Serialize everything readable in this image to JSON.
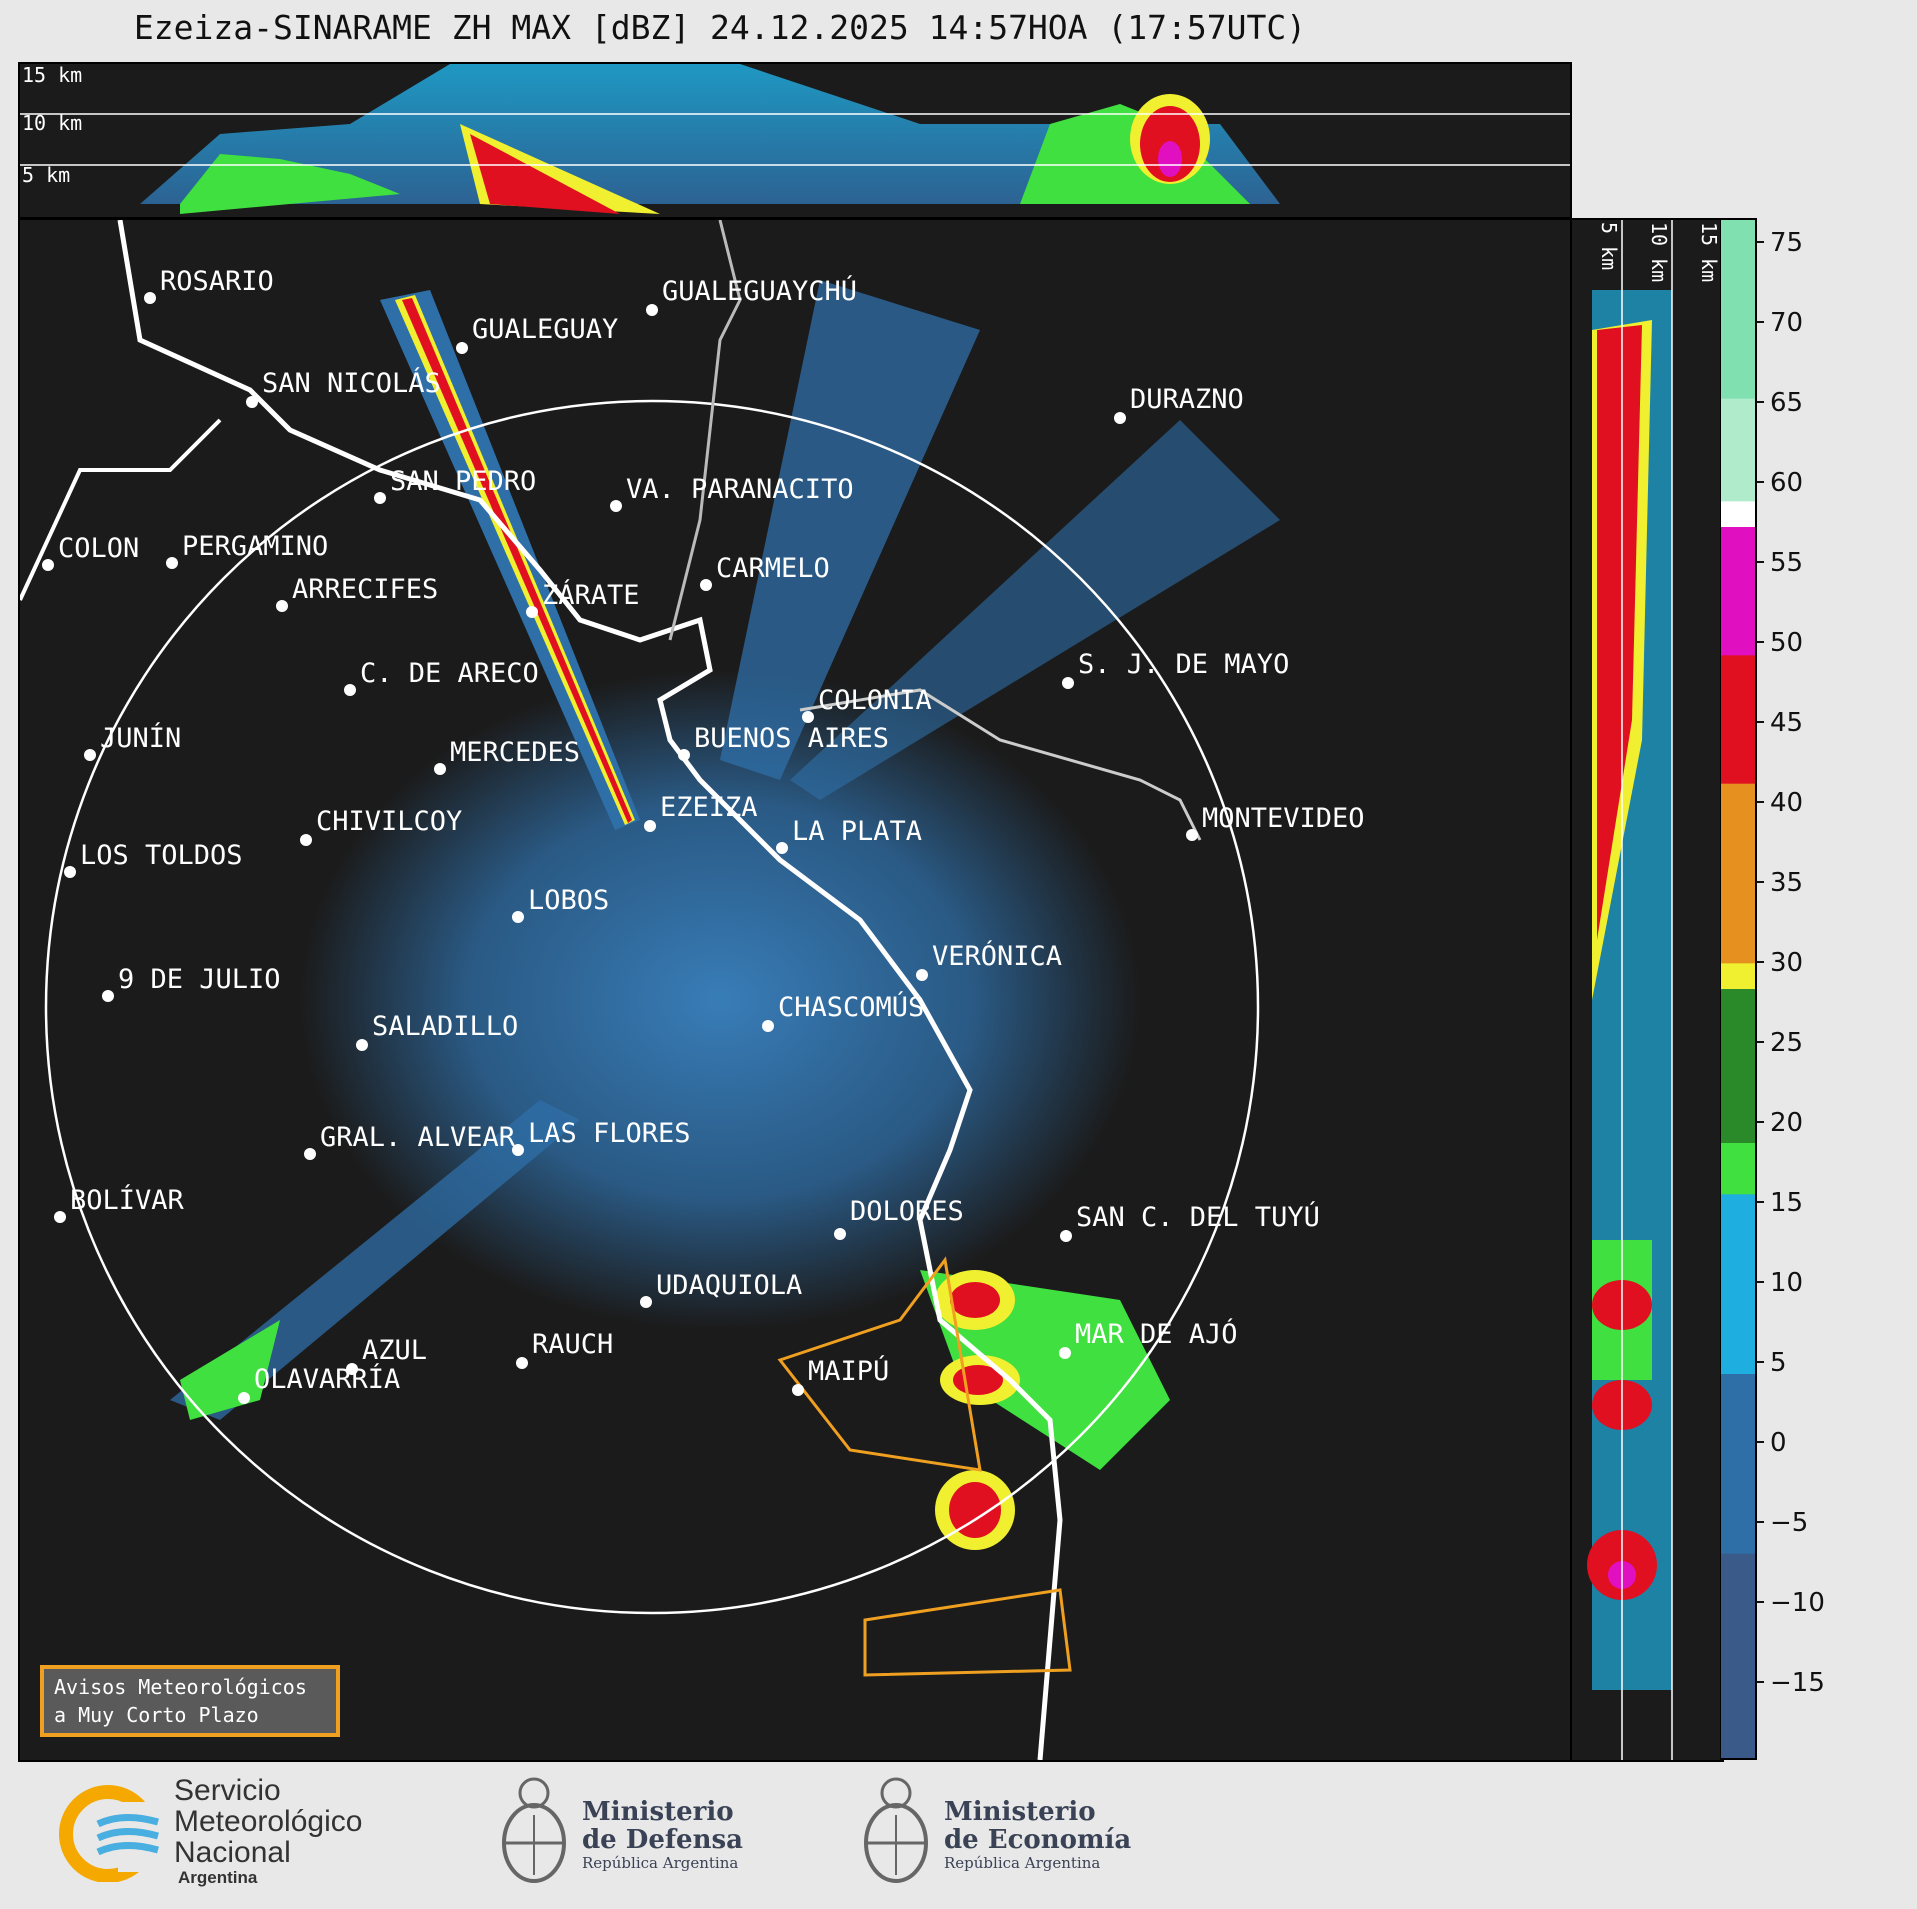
{
  "title": "Ezeiza-SINARAME ZH MAX [dBZ] 24.12.2025 14:57HOA (17:57UTC)",
  "height_panel": {
    "top_labels": [
      "15 km",
      "10 km",
      "5 km"
    ],
    "side_labels": [
      "5 km",
      "10 km",
      "15 km"
    ]
  },
  "colorbar": {
    "ticks": [
      "75",
      "70",
      "65",
      "60",
      "55",
      "50",
      "45",
      "40",
      "35",
      "30",
      "25",
      "20",
      "15",
      "10",
      "5",
      "0",
      "−5",
      "−10",
      "−15"
    ],
    "colors": {
      "min": "#3b3f6b",
      "low": "#2f6fa8",
      "mid": "#1faee0",
      "green": "#3fe03f",
      "yellow": "#f0f030",
      "orange": "#e69020",
      "red": "#e01020",
      "magenta": "#e010c0",
      "white": "#ffffff",
      "teal": "#80e0b0"
    }
  },
  "cities": [
    {
      "name": "ROSARIO"
    },
    {
      "name": "GUALEGUAYCHÚ"
    },
    {
      "name": "GUALEGUAY"
    },
    {
      "name": "SAN NICOLÁS"
    },
    {
      "name": "DURAZNO"
    },
    {
      "name": "SAN PEDRO"
    },
    {
      "name": "VA. PARANACITO"
    },
    {
      "name": "COLON"
    },
    {
      "name": "PERGAMINO"
    },
    {
      "name": "CARMELO"
    },
    {
      "name": "ARRECIFES"
    },
    {
      "name": "ZÁRATE"
    },
    {
      "name": "S. J. DE MAYO"
    },
    {
      "name": "C. DE ARECO"
    },
    {
      "name": "COLONIA"
    },
    {
      "name": "JUNÍN"
    },
    {
      "name": "BUENOS AIRES"
    },
    {
      "name": "MERCEDES"
    },
    {
      "name": "EZEIZA"
    },
    {
      "name": "MONTEVIDEO"
    },
    {
      "name": "CHIVILCOY"
    },
    {
      "name": "LA PLATA"
    },
    {
      "name": "LOS TOLDOS"
    },
    {
      "name": "LOBOS"
    },
    {
      "name": "VERÓNICA"
    },
    {
      "name": "9 DE JULIO"
    },
    {
      "name": "CHASCOMÚS"
    },
    {
      "name": "SALADILLO"
    },
    {
      "name": "GRAL. ALVEAR"
    },
    {
      "name": "LAS FLORES"
    },
    {
      "name": "BOLÍVAR"
    },
    {
      "name": "DOLORES"
    },
    {
      "name": "SAN C. DEL TUYÚ"
    },
    {
      "name": "UDAQUIOLA"
    },
    {
      "name": "MAR DE AJÓ"
    },
    {
      "name": "RAUCH"
    },
    {
      "name": "AZUL"
    },
    {
      "name": "OLAVARRÍA"
    },
    {
      "name": "MAIPÚ"
    }
  ],
  "warning": {
    "line1": "Avisos Meteorológicos",
    "line2": "a Muy Corto Plazo"
  },
  "logos": {
    "smn": {
      "line1": "Servicio",
      "line2": "Meteorológico",
      "line3": "Nacional",
      "sub": "Argentina"
    },
    "defensa": {
      "line1": "Ministerio",
      "line2": "de Defensa",
      "sub": "República Argentina"
    },
    "economia": {
      "line1": "Ministerio",
      "line2": "de Economía",
      "sub": "República Argentina"
    }
  }
}
